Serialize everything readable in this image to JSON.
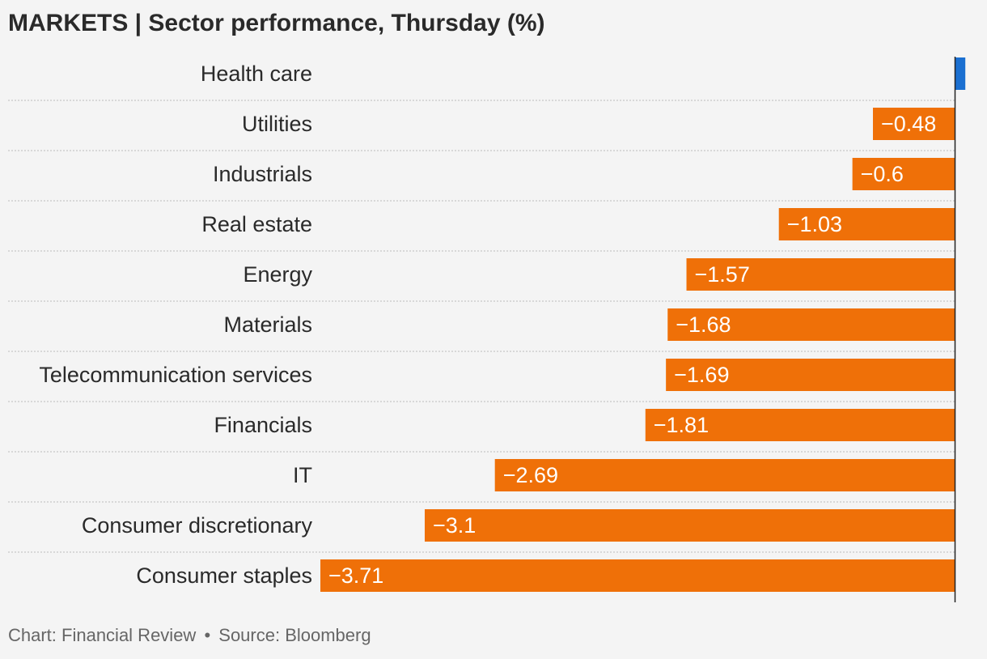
{
  "header": {
    "title": "MARKETS | Sector performance, Thursday (%)"
  },
  "footer": {
    "chart_credit": "Chart: Financial Review",
    "separator": "•",
    "source": "Source: Bloomberg"
  },
  "colors": {
    "negative": "#ef7008",
    "positive": "#1a6fd1",
    "label_text": "#ffffff",
    "category_text": "#2a2a2a",
    "gridline": "#bdbdbd",
    "zero_line": "#222222"
  },
  "chart_data": {
    "type": "bar",
    "orientation": "horizontal",
    "title": "MARKETS | Sector performance, Thursday (%)",
    "categories": [
      "Health care",
      "Utilities",
      "Industrials",
      "Real estate",
      "Energy",
      "Materials",
      "Telecommunication services",
      "Financials",
      "IT",
      "Consumer discretionary",
      "Consumer staples"
    ],
    "values": [
      0.06,
      -0.48,
      -0.6,
      -1.03,
      -1.57,
      -1.68,
      -1.69,
      -1.81,
      -2.69,
      -3.1,
      -3.71
    ],
    "value_labels": [
      "",
      "−0.48",
      "−0.6",
      "−1.03",
      "−1.57",
      "−1.68",
      "−1.69",
      "−1.81",
      "−2.69",
      "−3.1",
      "−3.71"
    ],
    "xlim": [
      -3.71,
      0.13
    ],
    "grid": true
  }
}
